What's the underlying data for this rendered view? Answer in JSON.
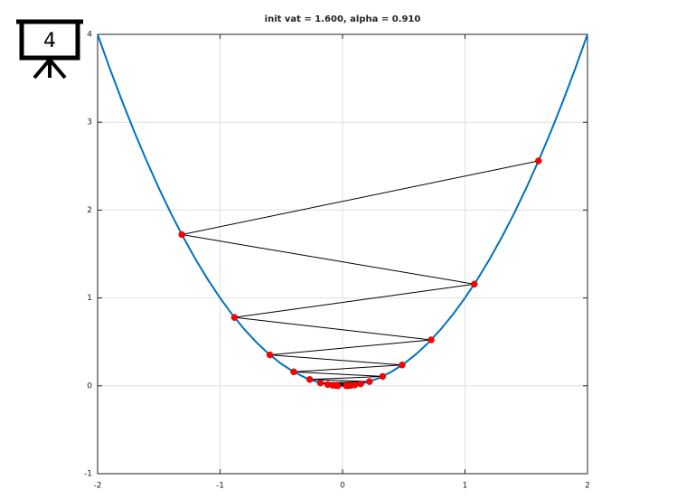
{
  "icon": {
    "label": "4"
  },
  "chart_data": {
    "type": "line",
    "title": "init vat = 1.600, alpha = 0.910",
    "xlim": [
      -2,
      2
    ],
    "ylim": [
      -1,
      4
    ],
    "xticks": [
      -2,
      -1,
      0,
      1,
      2
    ],
    "yticks": [
      -1,
      0,
      1,
      2,
      3,
      4
    ],
    "grid": true,
    "series": [
      {
        "color": "#0072bd",
        "x": [
          -2,
          -1.9,
          -1.8,
          -1.7,
          -1.6,
          -1.5,
          -1.4,
          -1.3,
          -1.2,
          -1.1,
          -1,
          -0.9,
          -0.8,
          -0.7,
          -0.6,
          -0.5,
          -0.4,
          -0.3,
          -0.2,
          -0.1,
          0,
          0.1,
          0.2,
          0.3,
          0.4,
          0.5,
          0.6,
          0.7,
          0.8,
          0.9,
          1,
          1.1,
          1.2,
          1.3,
          1.4,
          1.5,
          1.6,
          1.7,
          1.8,
          1.9,
          2
        ],
        "values": [
          4,
          3.61,
          3.24,
          2.89,
          2.56,
          2.25,
          1.96,
          1.69,
          1.44,
          1.21,
          1,
          0.81,
          0.64,
          0.49,
          0.36,
          0.25,
          0.16,
          0.09,
          0.04,
          0.01,
          0,
          0.01,
          0.04,
          0.09,
          0.16,
          0.25,
          0.36,
          0.49,
          0.64,
          0.81,
          1,
          1.21,
          1.44,
          1.69,
          1.96,
          2.25,
          2.56,
          2.89,
          3.24,
          3.61,
          4
        ]
      },
      {
        "color": "#000000",
        "marker_color": "#ff0000",
        "x": [
          1.6,
          -1.312,
          1.07584,
          -0.88219,
          0.72339,
          -0.59318,
          0.48641,
          -0.39886,
          0.32706,
          -0.26819,
          0.21992,
          -0.18033,
          0.14787,
          -0.12126,
          0.09943,
          -0.08153,
          0.06686,
          -0.05482,
          0.04495,
          -0.03686,
          0.03023
        ],
        "values": [
          2.56,
          1.721,
          1.157,
          0.778,
          0.523,
          0.352,
          0.237,
          0.159,
          0.107,
          0.0719,
          0.0484,
          0.0325,
          0.0219,
          0.0147,
          0.0099,
          0.0066,
          0.0045,
          0.003,
          0.002,
          0.0014,
          0.0009
        ]
      }
    ]
  }
}
